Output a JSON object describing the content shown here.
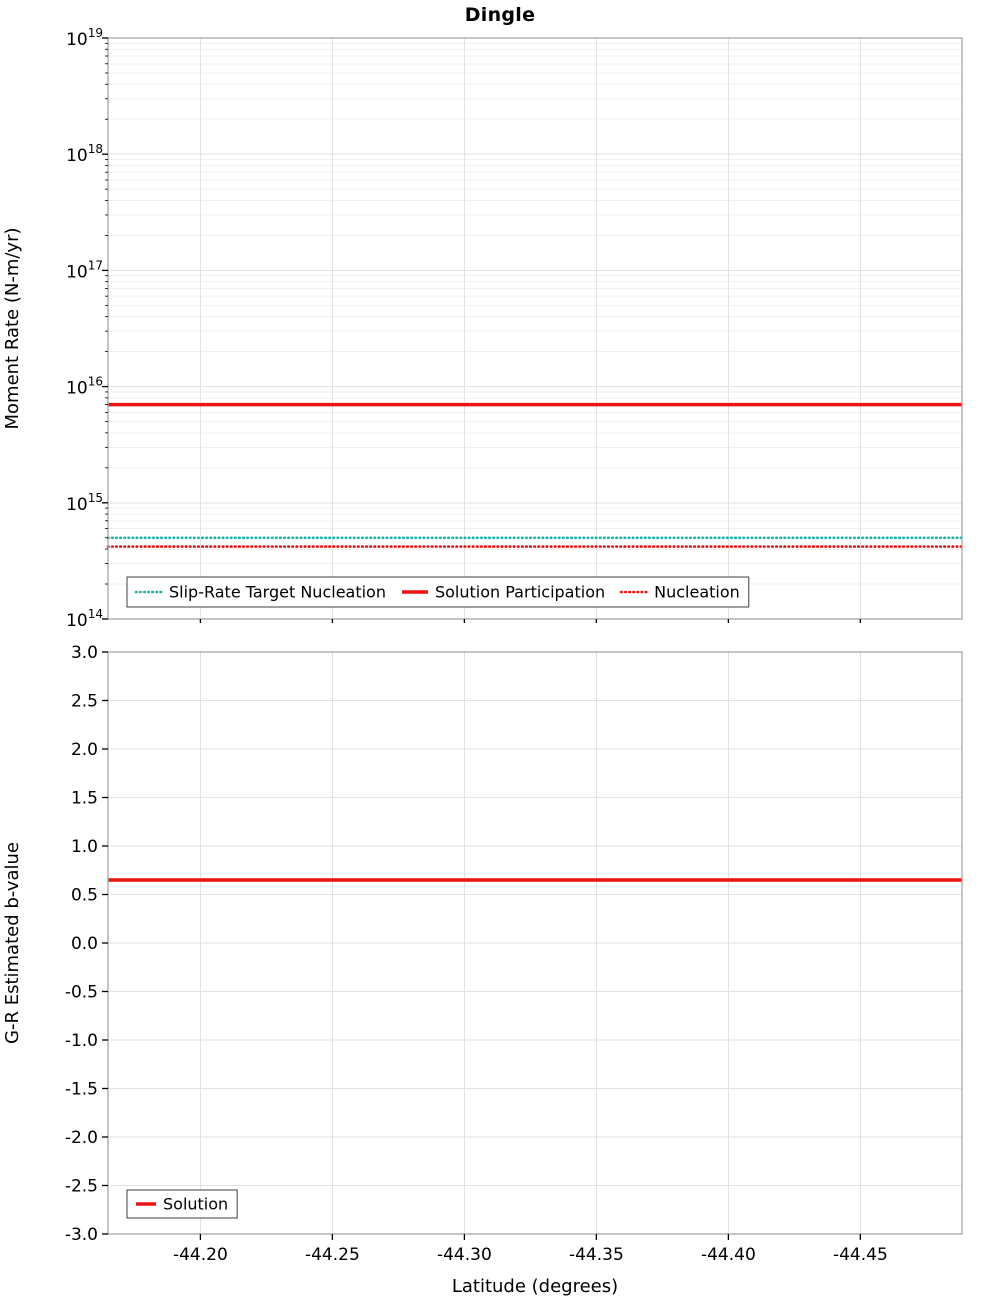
{
  "figure": {
    "title": "Dingle"
  },
  "chart_data": [
    {
      "type": "line",
      "title": "Dingle",
      "xlabel": "",
      "ylabel": "Moment Rate (N-m/yr)",
      "yscale": "log",
      "ylim": [
        100000000000000.0,
        1e+19
      ],
      "yticks_exponents": [
        14,
        15,
        16,
        17,
        18,
        19
      ],
      "x_range": [
        -44.165,
        -44.4885
      ],
      "grid": true,
      "legend_position": "bottom-left-inside",
      "legend": [
        "Slip-Rate Target Nucleation",
        "Solution Participation",
        "Nucleation"
      ],
      "series": [
        {
          "name": "Slip-Rate Target Nucleation",
          "color": "#17b3b3",
          "line": "dotted",
          "y_constant": 500000000000000.0
        },
        {
          "name": "Solution Participation",
          "color": "#ee1111",
          "line": "solid",
          "y_constant": 7000000000000000.0
        },
        {
          "name": "Nucleation",
          "color": "#ee1111",
          "line": "dotted",
          "y_constant": 420000000000000.0
        }
      ]
    },
    {
      "type": "line",
      "title": "",
      "xlabel": "Latitude (degrees)",
      "ylabel": "G-R Estimated b-value",
      "yscale": "linear",
      "ylim": [
        -3.0,
        3.0
      ],
      "ytick_step": 0.5,
      "xticks": [
        -44.2,
        -44.25,
        -44.3,
        -44.35,
        -44.4,
        -44.45
      ],
      "x_range": [
        -44.165,
        -44.4885
      ],
      "grid": true,
      "legend_position": "bottom-left-inside",
      "legend": [
        "Solution"
      ],
      "series": [
        {
          "name": "Solution",
          "color": "#ee1111",
          "line": "solid",
          "y_constant": 0.65
        }
      ]
    }
  ],
  "style_colors": {
    "grid_major": "#e2e2e2",
    "grid_minor": "#f0f0f0",
    "plot_border": "#a6a6a6",
    "tick": "#000000",
    "text": "#000000",
    "legend_border": "#3f3f3f"
  }
}
